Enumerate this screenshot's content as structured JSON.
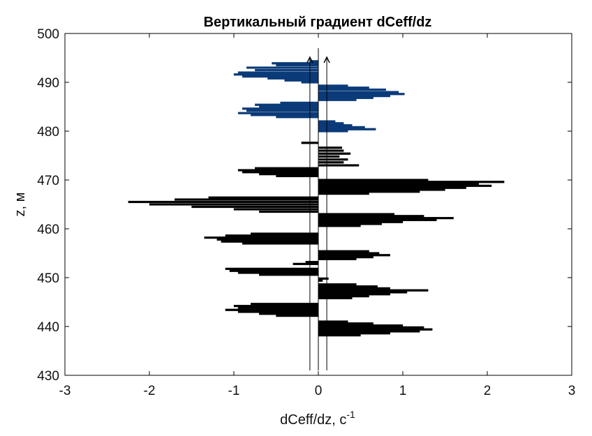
{
  "chart_data": {
    "type": "bar",
    "orientation": "horizontal",
    "title": "Вертикальный градиент dCeff/dz",
    "xlabel": "dCeff/dz, c",
    "xlabel_superscript": "-1",
    "ylabel": "z, м",
    "xlim": [
      -3,
      3
    ],
    "ylim": [
      430,
      500
    ],
    "xticks": [
      -3,
      -2,
      -1,
      0,
      1,
      2,
      3
    ],
    "yticks": [
      430,
      440,
      450,
      460,
      470,
      480,
      490,
      500
    ],
    "xtick_labels": [
      "-3",
      "-2",
      "-1",
      "0",
      "1",
      "2",
      "3"
    ],
    "ytick_labels": [
      "430",
      "440",
      "450",
      "460",
      "470",
      "480",
      "490",
      "500"
    ],
    "grid": false,
    "threshold_lines": [
      -0.1,
      0.0,
      0.1
    ],
    "threshold_lines_z_top": [
      494,
      497,
      494
    ],
    "arrowheads_at": [
      -0.1,
      0.1
    ],
    "colors": {
      "highlight": "#0a3a78",
      "bars": "#000000",
      "axis": "#000000"
    },
    "series": [
      {
        "color": "highlight",
        "bars": [
          {
            "z": 494.3,
            "v": -0.1
          },
          {
            "z": 493.9,
            "v": -0.55
          },
          {
            "z": 493.5,
            "v": -0.5
          },
          {
            "z": 493.0,
            "v": -0.85
          },
          {
            "z": 492.5,
            "v": -0.75
          },
          {
            "z": 492.0,
            "v": -0.95
          },
          {
            "z": 491.6,
            "v": -1.0
          },
          {
            "z": 491.2,
            "v": -0.9
          },
          {
            "z": 490.8,
            "v": -0.6
          },
          {
            "z": 490.4,
            "v": -0.4
          },
          {
            "z": 490.0,
            "v": -0.2
          },
          {
            "z": 489.3,
            "v": 0.35
          },
          {
            "z": 488.9,
            "v": 0.6
          },
          {
            "z": 488.5,
            "v": 0.8
          },
          {
            "z": 488.0,
            "v": 0.95
          },
          {
            "z": 487.6,
            "v": 1.02
          },
          {
            "z": 487.2,
            "v": 0.85
          },
          {
            "z": 486.8,
            "v": 0.65
          },
          {
            "z": 486.4,
            "v": 0.45
          },
          {
            "z": 485.8,
            "v": -0.45
          },
          {
            "z": 485.4,
            "v": -0.75
          },
          {
            "z": 485.0,
            "v": -0.7
          },
          {
            "z": 484.6,
            "v": -0.9
          },
          {
            "z": 484.2,
            "v": -0.85
          },
          {
            "z": 483.7,
            "v": -0.95
          },
          {
            "z": 483.3,
            "v": -0.8
          },
          {
            "z": 482.9,
            "v": -0.5
          },
          {
            "z": 482.0,
            "v": 0.2
          },
          {
            "z": 481.6,
            "v": 0.3
          },
          {
            "z": 481.2,
            "v": 0.4
          },
          {
            "z": 480.8,
            "v": 0.55
          },
          {
            "z": 480.4,
            "v": 0.68
          },
          {
            "z": 480.0,
            "v": 0.35
          }
        ]
      },
      {
        "color": "bars",
        "bars": [
          {
            "z": 477.6,
            "v": -0.2
          },
          {
            "z": 476.6,
            "v": 0.28
          },
          {
            "z": 476.0,
            "v": 0.3
          },
          {
            "z": 475.4,
            "v": 0.38
          },
          {
            "z": 474.8,
            "v": 0.25
          },
          {
            "z": 474.2,
            "v": 0.35
          },
          {
            "z": 473.6,
            "v": 0.3
          },
          {
            "z": 473.0,
            "v": 0.48
          },
          {
            "z": 472.4,
            "v": -0.75
          },
          {
            "z": 472.0,
            "v": -0.95
          },
          {
            "z": 471.6,
            "v": -0.9
          },
          {
            "z": 471.2,
            "v": -0.7
          },
          {
            "z": 470.8,
            "v": -0.5
          },
          {
            "z": 470.0,
            "v": 1.3
          },
          {
            "z": 469.6,
            "v": 2.2
          },
          {
            "z": 469.2,
            "v": 1.9
          },
          {
            "z": 468.8,
            "v": 2.05
          },
          {
            "z": 468.4,
            "v": 1.75
          },
          {
            "z": 468.0,
            "v": 1.5
          },
          {
            "z": 467.6,
            "v": 1.2
          },
          {
            "z": 467.2,
            "v": 0.6
          },
          {
            "z": 466.4,
            "v": -1.3
          },
          {
            "z": 466.0,
            "v": -1.7
          },
          {
            "z": 465.5,
            "v": -2.25
          },
          {
            "z": 465.0,
            "v": -2.0
          },
          {
            "z": 464.5,
            "v": -1.5
          },
          {
            "z": 464.0,
            "v": -1.0
          },
          {
            "z": 463.5,
            "v": -0.7
          },
          {
            "z": 463.0,
            "v": 0.9
          },
          {
            "z": 462.6,
            "v": 1.25
          },
          {
            "z": 462.2,
            "v": 1.6
          },
          {
            "z": 461.8,
            "v": 1.4
          },
          {
            "z": 461.4,
            "v": 1.0
          },
          {
            "z": 461.0,
            "v": 0.75
          },
          {
            "z": 460.6,
            "v": 0.5
          },
          {
            "z": 459.0,
            "v": -0.8
          },
          {
            "z": 458.6,
            "v": -1.1
          },
          {
            "z": 458.2,
            "v": -1.35
          },
          {
            "z": 457.8,
            "v": -1.2
          },
          {
            "z": 457.4,
            "v": -1.15
          },
          {
            "z": 457.0,
            "v": -0.9
          },
          {
            "z": 455.4,
            "v": 0.6
          },
          {
            "z": 455.0,
            "v": 0.72
          },
          {
            "z": 454.6,
            "v": 0.85
          },
          {
            "z": 454.2,
            "v": 0.65
          },
          {
            "z": 453.8,
            "v": 0.45
          },
          {
            "z": 453.2,
            "v": -0.15
          },
          {
            "z": 452.8,
            "v": -0.3
          },
          {
            "z": 451.8,
            "v": -1.1
          },
          {
            "z": 451.4,
            "v": -1.05
          },
          {
            "z": 451.0,
            "v": -0.95
          },
          {
            "z": 450.6,
            "v": -0.7
          },
          {
            "z": 449.8,
            "v": 0.12
          },
          {
            "z": 449.4,
            "v": 0.05
          },
          {
            "z": 448.6,
            "v": 0.45
          },
          {
            "z": 448.2,
            "v": 0.7
          },
          {
            "z": 447.8,
            "v": 0.85
          },
          {
            "z": 447.4,
            "v": 1.3
          },
          {
            "z": 447.0,
            "v": 1.05
          },
          {
            "z": 446.6,
            "v": 0.85
          },
          {
            "z": 446.2,
            "v": 0.6
          },
          {
            "z": 445.8,
            "v": 0.4
          },
          {
            "z": 444.6,
            "v": -0.8
          },
          {
            "z": 444.2,
            "v": -1.0
          },
          {
            "z": 443.8,
            "v": -0.95
          },
          {
            "z": 443.4,
            "v": -1.1
          },
          {
            "z": 443.0,
            "v": -0.95
          },
          {
            "z": 442.6,
            "v": -0.7
          },
          {
            "z": 442.2,
            "v": -0.5
          },
          {
            "z": 441.0,
            "v": 0.35
          },
          {
            "z": 440.6,
            "v": 0.65
          },
          {
            "z": 440.2,
            "v": 1.0
          },
          {
            "z": 439.8,
            "v": 1.25
          },
          {
            "z": 439.4,
            "v": 1.35
          },
          {
            "z": 439.0,
            "v": 1.2
          },
          {
            "z": 438.6,
            "v": 0.85
          },
          {
            "z": 438.2,
            "v": 0.5
          }
        ]
      }
    ]
  }
}
